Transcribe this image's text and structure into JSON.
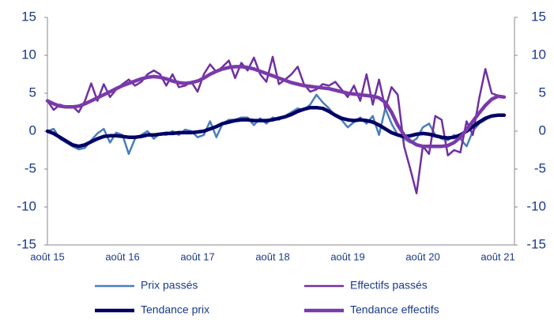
{
  "chart_data": {
    "type": "line",
    "categories": [
      "août 15",
      null,
      null,
      null,
      null,
      null,
      null,
      null,
      null,
      null,
      null,
      null,
      "août 16",
      null,
      null,
      null,
      null,
      null,
      null,
      null,
      null,
      null,
      null,
      null,
      "août 17",
      null,
      null,
      null,
      null,
      null,
      null,
      null,
      null,
      null,
      null,
      null,
      "août 18",
      null,
      null,
      null,
      null,
      null,
      null,
      null,
      null,
      null,
      null,
      null,
      "août 19",
      null,
      null,
      null,
      null,
      null,
      null,
      null,
      null,
      null,
      null,
      null,
      "août 20",
      null,
      null,
      null,
      null,
      null,
      null,
      null,
      null,
      null,
      null,
      null,
      "août 21",
      null
    ],
    "ylim": [
      -15,
      15
    ],
    "yticks": [
      -15,
      -10,
      -5,
      0,
      5,
      10,
      15
    ],
    "y2lim": [
      -15,
      15
    ],
    "y2ticks": [
      -15,
      -10,
      -5,
      0,
      5,
      10,
      15
    ],
    "series": [
      {
        "name": "Prix passés",
        "color": "#4a7ebb",
        "width": 2.5,
        "values": [
          0,
          0.3,
          -1,
          -1.5,
          -2,
          -2.4,
          -2.2,
          -1.2,
          -0.3,
          0.3,
          -1.5,
          -0.2,
          -0.5,
          -3,
          -1,
          -0.5,
          0,
          -1,
          -0.3,
          -0.5,
          0,
          -0.5,
          0.2,
          0,
          -0.8,
          -0.5,
          1.3,
          -0.8,
          1,
          1.5,
          1.5,
          1.8,
          1.8,
          0.8,
          1.7,
          1,
          1.8,
          1.5,
          2,
          2.5,
          3,
          2.8,
          3.5,
          4.8,
          3.8,
          3,
          2,
          1.5,
          0.5,
          1.2,
          1.8,
          1,
          2,
          -0.5,
          3,
          1,
          -0.5,
          -1,
          -1.5,
          -1,
          0.5,
          1,
          -0.5,
          -1,
          -1.2,
          -0.5,
          -1,
          -2,
          0,
          1,
          1.5,
          2,
          2,
          2
        ]
      },
      {
        "name": "Effectifs passés",
        "color": "#7030a0",
        "width": 2.5,
        "values": [
          4,
          2.8,
          3.5,
          3.2,
          3.3,
          2.5,
          4,
          6.3,
          4,
          6.2,
          4.5,
          5.5,
          6.2,
          6.8,
          6,
          6.5,
          7.5,
          8,
          7.5,
          6,
          7.5,
          5.8,
          6,
          6.5,
          5.2,
          7.5,
          8.8,
          7.8,
          8.5,
          9.3,
          7,
          9,
          8,
          9.7,
          7.5,
          6.5,
          9.8,
          6.2,
          6.8,
          7.5,
          8.5,
          6.2,
          5.2,
          5.5,
          6.2,
          6,
          6.5,
          5.5,
          4.5,
          6,
          4,
          7.5,
          3.5,
          6.8,
          3,
          5.8,
          4.8,
          -2,
          -5,
          -8.2,
          -2,
          -3,
          2,
          1.5,
          -3.2,
          -2.5,
          -2.8,
          1.3,
          -0.5,
          4.3,
          8.2,
          5,
          4.7,
          4.5
        ]
      },
      {
        "name": "Tendance prix",
        "color": "#000066",
        "width": 4.5,
        "values": [
          0,
          -0.3,
          -0.8,
          -1.3,
          -1.8,
          -2,
          -1.8,
          -1.4,
          -1,
          -0.7,
          -0.6,
          -0.6,
          -0.7,
          -0.8,
          -0.8,
          -0.7,
          -0.5,
          -0.5,
          -0.4,
          -0.3,
          -0.3,
          -0.2,
          -0.2,
          -0.2,
          -0.1,
          0,
          0.3,
          0.6,
          1,
          1.2,
          1.4,
          1.5,
          1.5,
          1.4,
          1.4,
          1.4,
          1.5,
          1.7,
          1.9,
          2.2,
          2.6,
          2.9,
          3.1,
          3.1,
          3,
          2.6,
          2.1,
          1.7,
          1.5,
          1.4,
          1.5,
          1.4,
          1.2,
          0.8,
          0.3,
          -0.2,
          -0.5,
          -0.7,
          -0.6,
          -0.4,
          -0.3,
          -0.4,
          -0.6,
          -0.8,
          -0.9,
          -0.8,
          -0.5,
          0,
          0.6,
          1.2,
          1.7,
          2,
          2.1,
          2.1
        ]
      },
      {
        "name": "Tendance effectifs",
        "color": "#7a3aaa",
        "width": 4.5,
        "values": [
          4,
          3.6,
          3.3,
          3.2,
          3.2,
          3.3,
          3.6,
          4,
          4.4,
          4.8,
          5.2,
          5.6,
          6,
          6.3,
          6.6,
          6.9,
          7.1,
          7.2,
          7.1,
          6.9,
          6.6,
          6.4,
          6.3,
          6.4,
          6.6,
          7,
          7.5,
          7.9,
          8.2,
          8.4,
          8.5,
          8.5,
          8.4,
          8.2,
          7.9,
          7.6,
          7.3,
          7,
          6.7,
          6.4,
          6.2,
          6,
          5.9,
          5.8,
          5.7,
          5.6,
          5.4,
          5.2,
          5,
          4.9,
          4.8,
          4.7,
          4.6,
          4.4,
          3.8,
          2.5,
          0.8,
          -0.5,
          -1.3,
          -1.8,
          -2,
          -2,
          -2,
          -2,
          -1.9,
          -1.5,
          -0.8,
          0.2,
          1.3,
          2.4,
          3.4,
          4.2,
          4.6,
          4.5
        ]
      }
    ]
  }
}
